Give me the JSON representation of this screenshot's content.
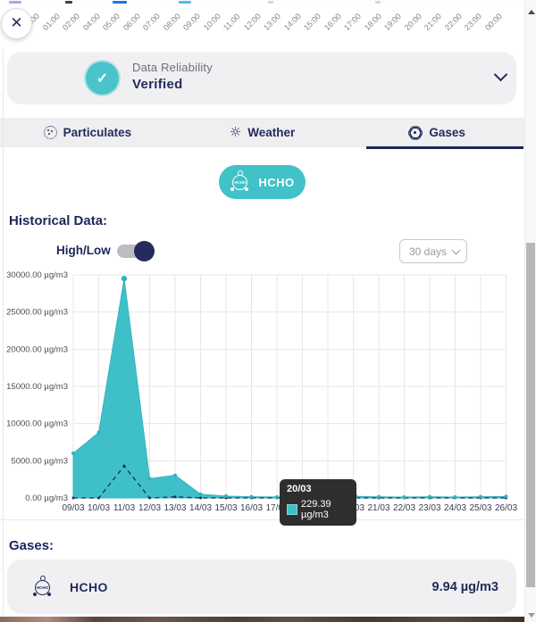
{
  "top_bar": {
    "time_labels": [
      "00:00",
      "01:00",
      "02:00",
      "04:00",
      "05:00",
      "06:00",
      "07:00",
      "08:00",
      "09:00",
      "10:00",
      "11:00",
      "12:00",
      "13:00",
      "14:00",
      "15:00",
      "16:00",
      "17:00",
      "18:00",
      "19:00",
      "20:00",
      "21:00",
      "22:00",
      "23:00",
      "00:00"
    ],
    "close_glyph": "✕"
  },
  "reliability": {
    "title": "Data Reliability",
    "status": "Verified",
    "badge_glyph": "✓"
  },
  "tabs": [
    {
      "label": "Particulates",
      "active": false
    },
    {
      "label": "Weather",
      "active": false
    },
    {
      "label": "Gases",
      "active": true
    }
  ],
  "weather_icon_glyph": "☼",
  "gas_pill": {
    "label": "HCHO"
  },
  "historical": {
    "heading": "Historical Data:",
    "toggle_label": "High/Low",
    "toggle_state": "on",
    "range_select": "30 days"
  },
  "chart_data": {
    "type": "area",
    "title": "",
    "xlabel": "",
    "ylabel": "µg/m3",
    "ylim": [
      0,
      30000
    ],
    "grid": true,
    "x": [
      "09/03",
      "10/03",
      "11/03",
      "12/03",
      "13/03",
      "14/03",
      "15/03",
      "16/03",
      "17/03",
      "18/03",
      "19/03",
      "20/03",
      "21/03",
      "22/03",
      "23/03",
      "24/03",
      "25/03",
      "26/03"
    ],
    "series": [
      {
        "name": "high",
        "values": [
          6000,
          8800,
          29500,
          2600,
          3050,
          500,
          250,
          160,
          130,
          120,
          120,
          229.39,
          150,
          120,
          160,
          120,
          160,
          200
        ]
      },
      {
        "name": "low",
        "values": [
          0,
          0,
          4300,
          0,
          150,
          0,
          0,
          0,
          0,
          0,
          0,
          0,
          0,
          0,
          0,
          0,
          0,
          0
        ]
      }
    ],
    "y_ticks": [
      "30000.00 µg/m3",
      "25000.00 µg/m3",
      "20000.00 µg/m3",
      "15000.00 µg/m3",
      "10000.00 µg/m3",
      "5000.00 µg/m3",
      "0.00 µg/m3"
    ],
    "y_tick_values": [
      30000,
      25000,
      20000,
      15000,
      10000,
      5000,
      0
    ],
    "peak_index": 2,
    "tooltip": {
      "date": "20/03",
      "value": "229.39 µg/m3",
      "index": 11
    },
    "colors": {
      "area": "#3fc0c8",
      "area_edge": "#35b4bd",
      "low_line": "#232b5e",
      "marker": "#2fb3bc",
      "grid": "#e7e7ea"
    }
  },
  "gases_section": {
    "heading": "Gases:",
    "rows": [
      {
        "name": "HCHO",
        "value": "9.94 µg/m3"
      }
    ]
  }
}
